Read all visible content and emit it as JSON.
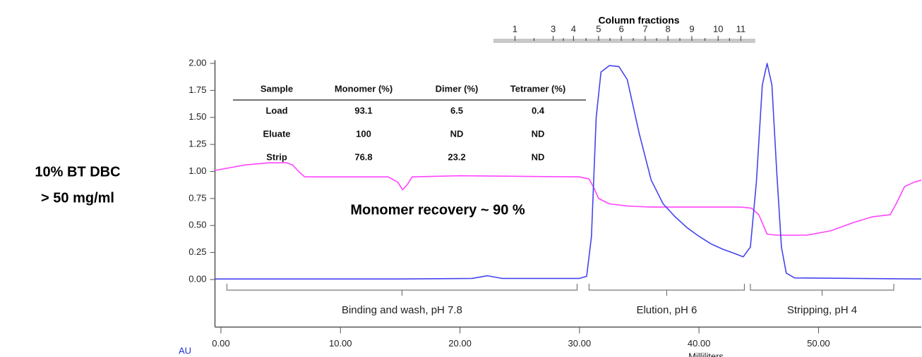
{
  "chart_data": {
    "type": "line",
    "side_note": [
      "10% BT DBC",
      "> 50 mg/ml"
    ],
    "annotation": "Monomer recovery ~ 90 %",
    "y_label": "AU",
    "x_label": "Milliliters",
    "fraction_title": "Column fractions",
    "fraction_range": [
      22.8,
      44.7
    ],
    "fractions": [
      {
        "label": "1",
        "x": 24.6
      },
      {
        "label": "3",
        "x": 27.8
      },
      {
        "label": "4",
        "x": 29.5
      },
      {
        "label": "5",
        "x": 31.6
      },
      {
        "label": "6",
        "x": 33.5
      },
      {
        "label": "7",
        "x": 35.5
      },
      {
        "label": "8",
        "x": 37.4
      },
      {
        "label": "9",
        "x": 39.4
      },
      {
        "label": "10",
        "x": 41.6
      },
      {
        "label": "11",
        "x": 43.5
      }
    ],
    "table": {
      "header": [
        "Sample",
        "Monomer (%)",
        "Dimer (%)",
        "Tetramer (%)"
      ],
      "rows": [
        [
          "Load",
          "93.1",
          "6.5",
          "0.4"
        ],
        [
          "Eluate",
          "100",
          "ND",
          "ND"
        ],
        [
          "Strip",
          "76.8",
          "23.2",
          "ND"
        ]
      ]
    },
    "regions": [
      {
        "label": "Binding and wash, pH 7.8",
        "range": [
          0.5,
          29.8
        ]
      },
      {
        "label": "Elution, pH 6",
        "range": [
          30.8,
          43.8
        ]
      },
      {
        "label": "Stripping, pH 4",
        "range": [
          44.3,
          56.3
        ]
      }
    ],
    "xlim": [
      -0.5,
      58.6
    ],
    "ylim": [
      -0.44,
      2.03
    ],
    "xticks": [
      {
        "value": 0,
        "label": "0.00"
      },
      {
        "value": 10,
        "label": "10.00"
      },
      {
        "value": 20,
        "label": "20.00"
      },
      {
        "value": 30,
        "label": "30.00"
      },
      {
        "value": 40,
        "label": "40.00"
      },
      {
        "value": 50,
        "label": "50.00"
      }
    ],
    "yticks": [
      {
        "value": 0,
        "label": "0.00"
      },
      {
        "value": 0.25,
        "label": "0.25"
      },
      {
        "value": 0.5,
        "label": "0.50"
      },
      {
        "value": 0.75,
        "label": "0.75"
      },
      {
        "value": 1,
        "label": "1.00"
      },
      {
        "value": 1.25,
        "label": "1.25"
      },
      {
        "value": 1.5,
        "label": "1.50"
      },
      {
        "value": 1.75,
        "label": "1.75"
      },
      {
        "value": 2,
        "label": "2.00"
      }
    ],
    "series": [
      {
        "color": "#ff44ff",
        "x": [
          -0.5,
          2,
          4,
          5.5,
          6,
          6.5,
          7,
          14,
          14.8,
          15.2,
          15.6,
          16,
          20,
          30,
          30.8,
          31.2,
          31.6,
          32.5,
          34,
          36,
          43.5,
          44.4,
          45,
          45.7,
          46.5,
          49,
          51,
          53,
          54.5,
          56,
          56.5,
          57.2,
          58,
          58.6
        ],
        "values": [
          1.01,
          1.06,
          1.08,
          1.08,
          1.06,
          1.0,
          0.95,
          0.95,
          0.9,
          0.83,
          0.88,
          0.95,
          0.96,
          0.95,
          0.93,
          0.85,
          0.75,
          0.7,
          0.68,
          0.67,
          0.67,
          0.66,
          0.6,
          0.42,
          0.41,
          0.41,
          0.45,
          0.53,
          0.58,
          0.6,
          0.7,
          0.86,
          0.9,
          0.92
        ]
      },
      {
        "color": "#4444ee",
        "x": [
          -0.5,
          15,
          21,
          22.3,
          23.5,
          30,
          30.6,
          31.0,
          31.4,
          31.8,
          32.5,
          33.3,
          34.0,
          35.0,
          36.0,
          37.0,
          38.0,
          39.0,
          40.0,
          41.0,
          42.0,
          43.0,
          43.7,
          44.3,
          44.8,
          45.3,
          45.7,
          46.1,
          46.5,
          46.9,
          47.3,
          48,
          58.6
        ],
        "values": [
          0.005,
          0.005,
          0.01,
          0.035,
          0.01,
          0.01,
          0.03,
          0.4,
          1.5,
          1.92,
          1.98,
          1.97,
          1.85,
          1.35,
          0.92,
          0.7,
          0.58,
          0.48,
          0.4,
          0.33,
          0.28,
          0.24,
          0.21,
          0.3,
          0.9,
          1.8,
          2.0,
          1.8,
          1.0,
          0.3,
          0.06,
          0.015,
          0.005
        ]
      }
    ]
  }
}
